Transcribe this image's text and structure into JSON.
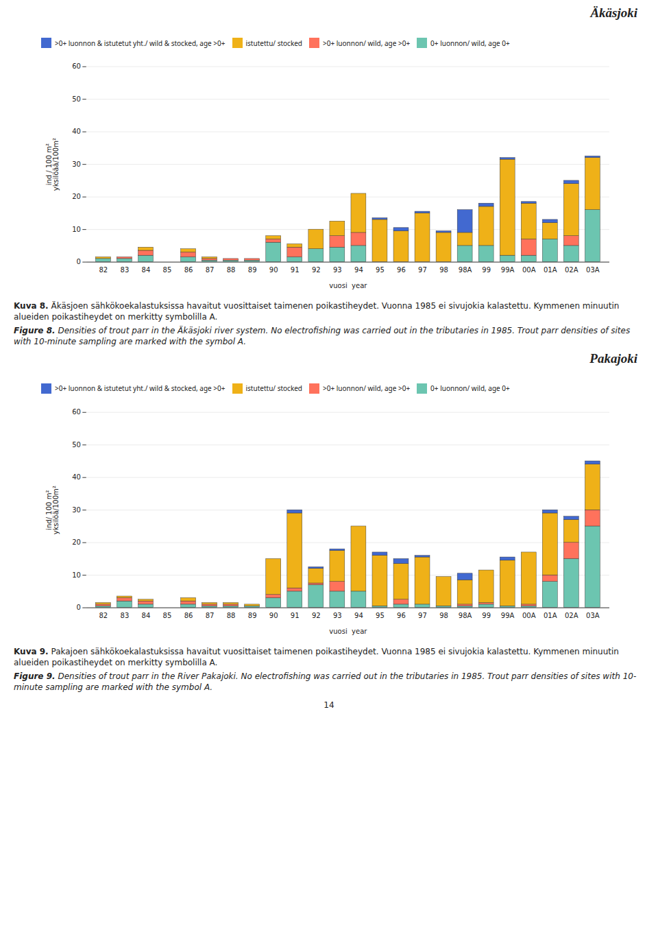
{
  "chart_data": [
    {
      "type": "bar",
      "stacked": true,
      "grid": true,
      "legend": "top",
      "title": "Äkäsjoki",
      "xlabel": "vuosi  year",
      "ylabel": "ind / 100 m²\nyksilöää/100m²",
      "categories": [
        "82",
        "83",
        "84",
        "85",
        "86",
        "87",
        "88",
        "89",
        "90",
        "91",
        "92",
        "93",
        "94",
        "95",
        "96",
        "97",
        "98",
        "98A",
        "99",
        "99A",
        "00A",
        "01A",
        "02A",
        "03A"
      ],
      "series": [
        {
          "name": "0+ luonnon/ wild, age 0+",
          "values": [
            1.0,
            1.0,
            2.0,
            0.0,
            1.5,
            0.5,
            0.5,
            0.5,
            6.0,
            1.5,
            4.0,
            4.5,
            5.0,
            0.0,
            0.0,
            0.0,
            0.0,
            5.0,
            5.0,
            2.0,
            2.0,
            7.0,
            5.0,
            16.0
          ]
        },
        {
          "name": ">0+ luonnon/ wild, age >0+",
          "values": [
            0.0,
            0.5,
            1.5,
            0.0,
            1.5,
            0.5,
            0.5,
            0.5,
            1.0,
            3.0,
            0.0,
            3.5,
            4.0,
            0.0,
            0.0,
            0.0,
            0.0,
            0.0,
            0.0,
            0.0,
            5.0,
            0.0,
            3.0,
            0.0
          ]
        },
        {
          "name": "istutettu/ stocked",
          "values": [
            0.5,
            0.0,
            1.0,
            0.0,
            1.0,
            0.5,
            0.0,
            0.0,
            1.0,
            1.0,
            6.0,
            4.5,
            12.0,
            13.0,
            9.5,
            15.0,
            9.0,
            4.0,
            12.0,
            29.5,
            11.0,
            5.0,
            16.0,
            16.0
          ]
        },
        {
          "name": ">0+ luonnon & istutetut yht./ wild & stocked, age >0+",
          "values": [
            0.0,
            0.0,
            0.0,
            0.0,
            0.0,
            0.0,
            0.0,
            0.0,
            0.0,
            0.0,
            0.0,
            0.0,
            0.0,
            0.5,
            1.0,
            0.5,
            0.5,
            7.0,
            1.0,
            0.5,
            0.5,
            1.0,
            1.0,
            0.5
          ]
        }
      ],
      "ylim": [
        0,
        60
      ],
      "yticks": [
        0,
        10,
        20,
        30,
        40,
        50,
        60
      ],
      "annotations": [
        "Kuva 8. Äkäsjoen sähkökoekalastuksissa havaitut vuosittaiset taimenen poikastiheydet. Vuonna 1985 ei sivujokia kalastettu. Kymmenen minuutin alueiden poikastiheydet on merkitty symbolilla A.",
        "Figure 8. Densities of trout parr in the Äkäsjoki river system. No electrofishing was carried out in the tributaries in 1985. Trout parr densities of sites with 10-minute sampling are marked with the symbol A."
      ]
    },
    {
      "type": "bar",
      "stacked": true,
      "grid": true,
      "legend": "top",
      "title": "Pakajoki",
      "xlabel": "vuosi  year",
      "ylabel": "ind/ 100 m²\nyksilöä/100m²",
      "categories": [
        "82",
        "83",
        "84",
        "85",
        "86",
        "87",
        "88",
        "89",
        "90",
        "91",
        "92",
        "93",
        "94",
        "95",
        "96",
        "97",
        "98",
        "98A",
        "99",
        "99A",
        "00A",
        "01A",
        "02A",
        "03A"
      ],
      "series": [
        {
          "name": "0+ luonnon/ wild, age 0+",
          "values": [
            0.5,
            2.0,
            1.0,
            0.0,
            1.0,
            0.5,
            0.5,
            0.5,
            3.0,
            5.0,
            7.0,
            5.0,
            5.0,
            0.5,
            1.0,
            1.0,
            0.5,
            0.5,
            1.0,
            0.5,
            0.5,
            8.0,
            15.0,
            25.0
          ]
        },
        {
          "name": ">0+ luonnon/ wild, age >0+",
          "values": [
            0.5,
            1.0,
            1.0,
            0.0,
            1.0,
            0.5,
            0.5,
            0.0,
            1.0,
            1.0,
            0.5,
            3.0,
            0.0,
            0.0,
            1.5,
            0.0,
            0.0,
            0.5,
            0.5,
            0.0,
            0.5,
            2.0,
            5.0,
            5.0
          ]
        },
        {
          "name": "istutettu/ stocked",
          "values": [
            0.5,
            0.5,
            0.5,
            0.0,
            1.0,
            0.5,
            0.5,
            0.5,
            11.0,
            23.0,
            4.5,
            9.5,
            20.0,
            15.5,
            11.0,
            14.5,
            9.0,
            7.5,
            10.0,
            14.0,
            16.0,
            19.0,
            7.0,
            14.0
          ]
        },
        {
          "name": ">0+ luonnon & istutetut yht./ wild & stocked, age >0+",
          "values": [
            0.0,
            0.0,
            0.0,
            0.0,
            0.0,
            0.0,
            0.0,
            0.0,
            0.0,
            1.0,
            0.5,
            0.5,
            0.0,
            1.0,
            1.5,
            0.5,
            0.0,
            2.0,
            0.0,
            1.0,
            0.0,
            1.0,
            1.0,
            1.0
          ]
        }
      ],
      "ylim": [
        0,
        60
      ],
      "yticks": [
        0,
        10,
        20,
        30,
        40,
        50,
        60
      ],
      "annotations": [
        "Kuva 9. Pakajoen sähkökoekalastuksissa havaitut vuosittaiset taimenen poikastiheydet. Vuonna 1985 ei sivujokia kalastettu. Kymmenen minuutin alueiden poikastiheydet on merkitty symbolilla A.",
        "Figure 9. Densities of trout parr in the River Pakajoki. No electrofishing was carried out in the tributaries in 1985. Trout parr densities of sites with 10-minute sampling are marked with the symbol A.",
        "14"
      ]
    }
  ]
}
